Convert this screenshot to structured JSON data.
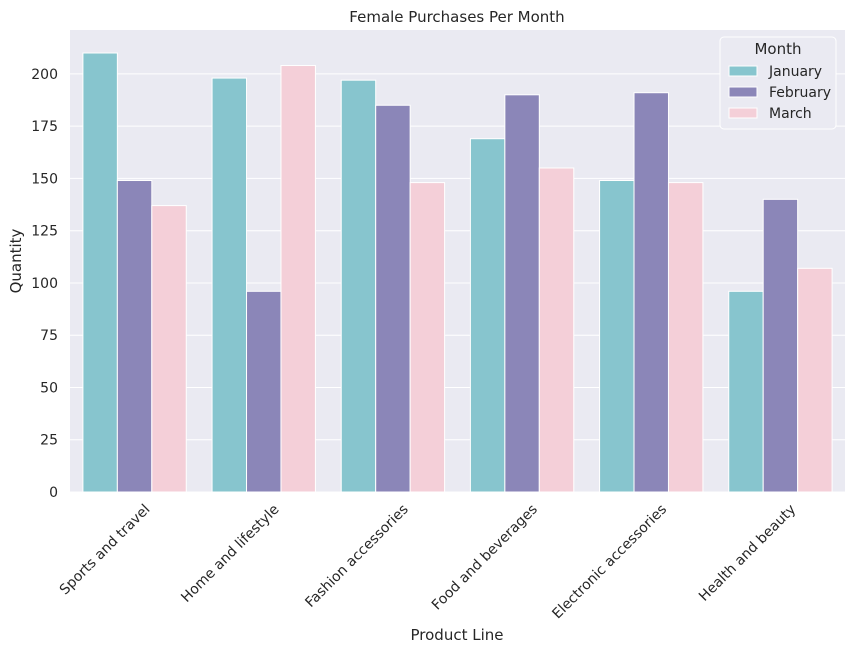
{
  "chart_data": {
    "type": "bar",
    "title": "Female Purchases Per Month",
    "xlabel": "Product Line",
    "ylabel": "Quantity",
    "categories": [
      "Sports and travel",
      "Home and lifestyle",
      "Fashion accessories",
      "Food and beverages",
      "Electronic accessories",
      "Health and beauty"
    ],
    "series": [
      {
        "name": "January",
        "color": "#87C5CE",
        "values": [
          210,
          198,
          197,
          169,
          149,
          96
        ]
      },
      {
        "name": "February",
        "color": "#8B86B8",
        "values": [
          149,
          96,
          185,
          190,
          191,
          140
        ]
      },
      {
        "name": "March",
        "color": "#F4CFD8",
        "values": [
          137,
          204,
          148,
          155,
          148,
          107
        ]
      }
    ],
    "ylim": [
      0,
      221
    ],
    "yticks": [
      0,
      25,
      50,
      75,
      100,
      125,
      150,
      175,
      200
    ],
    "legend": {
      "title": "Month",
      "placement": "top-right"
    },
    "grid": true,
    "background": "#EAEAF2"
  }
}
